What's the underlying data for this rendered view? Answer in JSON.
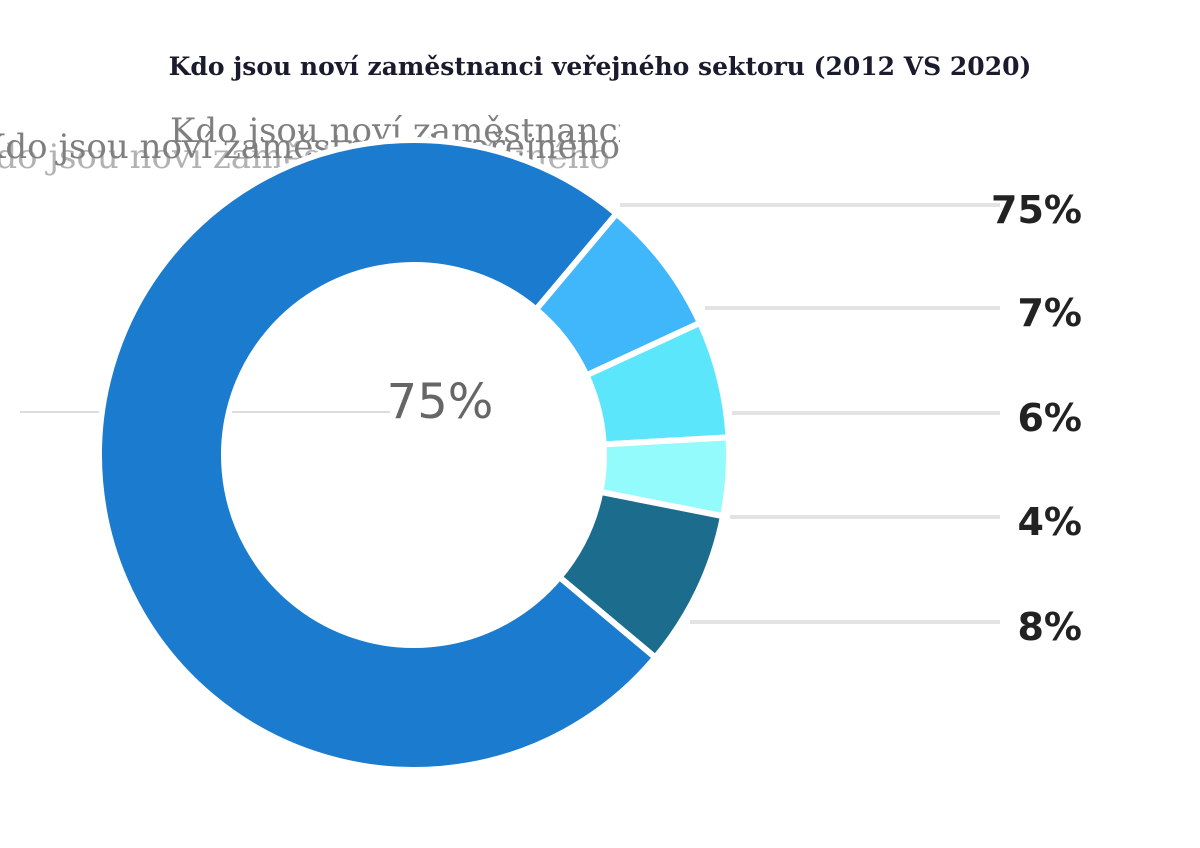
{
  "title": "Kdo jsou noví zaměstnanci veřejného sektoru (2012 VS 2020)",
  "chart_data": {
    "type": "pie",
    "title": "Kdo jsou noví zaměstnanci veřejného sektoru (2012 VS 2020)",
    "center_label": "75%",
    "slices": [
      {
        "value": 75,
        "label": "75%",
        "color": "#1b7bce"
      },
      {
        "value": 7,
        "label": "7%",
        "color": "#40b6fb"
      },
      {
        "value": 6,
        "label": "6%",
        "color": "#5ce6fc"
      },
      {
        "value": 4,
        "label": "4%",
        "color": "#93fbfb"
      },
      {
        "value": 8,
        "label": "8%",
        "color": "#1c6c8d"
      }
    ],
    "legend_placement": "right"
  }
}
